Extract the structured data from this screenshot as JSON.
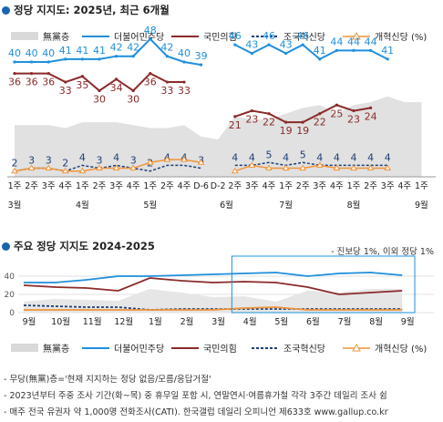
{
  "header1": {
    "title": "정당 지지도: 2025년, 최근 6개월"
  },
  "header2": {
    "title": "주요 정당 지지도 2024-2025"
  },
  "legend": [
    {
      "name": "無黨층",
      "color": "#d9d9d9",
      "style": "area"
    },
    {
      "name": "더불어민주당",
      "color": "#1f8fdc",
      "style": "line"
    },
    {
      "name": "국민의힘",
      "color": "#8b2a2a",
      "style": "line"
    },
    {
      "name": "조국혁신당",
      "color": "#1d3f77",
      "style": "dash"
    },
    {
      "name": "개혁신당 (%)",
      "color": "#f0943a",
      "style": "triangle"
    }
  ],
  "note": "- 진보당 1%, 이외 정당 1%",
  "footnotes": [
    "- 무당(無黨)층='현재 지지하는 정당 없음/모름/응답거절'",
    "- 2023년부터 주중 조사 기간(화~목) 중 휴무일 포함 시, 연말연시·여름휴가철 각각 3주간 데일리 조사 쉼",
    "- 매주 전국 유권자 약 1,000명 전화조사(CATI). 한국갤럽 데일리 오피니언 제633호 www.gallup.co.kr"
  ],
  "chart_data": [
    {
      "type": "line",
      "x": [
        "1주",
        "2주",
        "3주",
        "4주",
        "1주",
        "2주",
        "3주",
        "4주",
        "1주",
        "2주",
        "4주",
        "D-6",
        "D-2",
        "2주",
        "3주",
        "4주",
        "1주",
        "2주",
        "3주",
        "4주",
        "1주",
        "2주",
        "3주",
        "4주",
        "1주"
      ],
      "month_labels": [
        {
          "label": "3월",
          "at": 0
        },
        {
          "label": "4월",
          "at": 4
        },
        {
          "label": "5월",
          "at": 8
        },
        {
          "label": "6월",
          "at": 12.5
        },
        {
          "label": "7월",
          "at": 16
        },
        {
          "label": "8월",
          "at": 20
        },
        {
          "label": "9월",
          "at": 24
        }
      ],
      "series": [
        {
          "name": "無黨층",
          "values": [
            18,
            18,
            18,
            17,
            19,
            19,
            19,
            18,
            17,
            17,
            18,
            14,
            13,
            21,
            20,
            20,
            22,
            24,
            25,
            22,
            25,
            26,
            28,
            26,
            26
          ]
        },
        {
          "name": "더불어민주당",
          "values": [
            40,
            40,
            40,
            41,
            41,
            41,
            42,
            42,
            48,
            42,
            40,
            39,
            null,
            46,
            43,
            46,
            43,
            46,
            41,
            44,
            44,
            44,
            41,
            null,
            null
          ]
        },
        {
          "name": "국민의힘",
          "values": [
            36,
            36,
            36,
            33,
            35,
            30,
            34,
            30,
            36,
            33,
            33,
            null,
            null,
            21,
            23,
            22,
            19,
            19,
            22,
            25,
            23,
            24,
            null,
            null,
            null
          ]
        },
        {
          "name": "조국혁신당",
          "values": [
            2,
            3,
            3,
            2,
            4,
            3,
            4,
            3,
            2,
            4,
            4,
            3,
            null,
            4,
            4,
            5,
            4,
            5,
            4,
            4,
            4,
            4,
            4,
            null,
            null
          ]
        },
        {
          "name": "개혁신당",
          "values": [
            2,
            3,
            3,
            2,
            2,
            3,
            3,
            3,
            5,
            6,
            6,
            5,
            null,
            2,
            4,
            3,
            3,
            3,
            4,
            3,
            3,
            3,
            3,
            null,
            null
          ]
        }
      ],
      "ylim": [
        0,
        55
      ]
    },
    {
      "type": "line",
      "x_labels": [
        "9월",
        "10월",
        "11월",
        "12월",
        "1월",
        "2월",
        "3월",
        "4월",
        "5월",
        "6월",
        "7월",
        "8월",
        "9월"
      ],
      "series": [
        {
          "name": "無黨층",
          "values": [
            12,
            15,
            14,
            13,
            26,
            22,
            17,
            18,
            12,
            24,
            22,
            26,
            26
          ]
        },
        {
          "name": "더불어민주당",
          "values": [
            33,
            33,
            36,
            40,
            40,
            41,
            42,
            43,
            44,
            40,
            43,
            44,
            41
          ]
        },
        {
          "name": "국민의힘",
          "values": [
            30,
            28,
            27,
            24,
            38,
            35,
            33,
            34,
            33,
            28,
            20,
            22,
            24
          ]
        },
        {
          "name": "조국혁신당",
          "values": [
            8,
            7,
            6,
            6,
            3,
            4,
            4,
            4,
            4,
            4,
            4,
            4,
            4
          ]
        },
        {
          "name": "개혁신당",
          "values": [
            3,
            3,
            3,
            3,
            3,
            3,
            3,
            5,
            6,
            3,
            3,
            3,
            3
          ]
        }
      ],
      "yticks": [
        0,
        20,
        40
      ],
      "ylim": [
        0,
        50
      ]
    }
  ]
}
